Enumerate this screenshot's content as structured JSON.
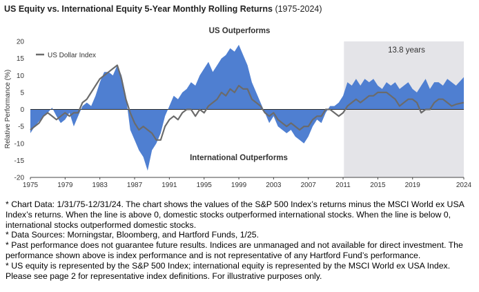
{
  "chart_data": {
    "type": "area",
    "title": "US Equity vs. International Equity 5-Year Monthly Rolling Returns",
    "title_period": "(1975-2024)",
    "ylabel": "Relative Performance (%)",
    "xlabel": "",
    "ylim": [
      -20,
      20
    ],
    "xlim": [
      1975,
      2024.9
    ],
    "y_ticks": [
      "20",
      "15",
      "10",
      "5",
      "0",
      "-5",
      "-10",
      "-15",
      "-20"
    ],
    "x_ticks": [
      "1975",
      "1979",
      "1983",
      "1987",
      "1991",
      "1995",
      "1999",
      "2003",
      "2007",
      "2011",
      "2015",
      "2019",
      "2024"
    ],
    "grid": false,
    "legend": "top-left",
    "annotations": {
      "top": "US Outperforms",
      "bottom": "International Outperforms",
      "highlight": "13.8 years",
      "highlight_range": [
        2011.1,
        2024.9
      ]
    },
    "colors": {
      "area": "#4f7fd1",
      "line": "#6b6b6b",
      "highlight": "#e4e4e8",
      "zero_line": "#2b2b2b"
    },
    "series": [
      {
        "name": "",
        "kind": "area",
        "x": [
          1975,
          1975.5,
          1976,
          1976.5,
          1977,
          1977.5,
          1978,
          1978.5,
          1979,
          1979.5,
          1980,
          1980.5,
          1981,
          1981.5,
          1982,
          1982.5,
          1983,
          1983.5,
          1984,
          1984.5,
          1985,
          1985.5,
          1986,
          1986.5,
          1987,
          1987.5,
          1988,
          1988.5,
          1989,
          1989.5,
          1990,
          1990.5,
          1991,
          1991.5,
          1992,
          1992.5,
          1993,
          1993.5,
          1994,
          1994.5,
          1995,
          1995.5,
          1996,
          1996.5,
          1997,
          1997.5,
          1998,
          1998.5,
          1999,
          1999.5,
          2000,
          2000.5,
          2001,
          2001.5,
          2002,
          2002.5,
          2003,
          2003.5,
          2004,
          2004.5,
          2005,
          2005.5,
          2006,
          2006.5,
          2007,
          2007.5,
          2008,
          2008.5,
          2009,
          2009.5,
          2010,
          2010.5,
          2011,
          2011.5,
          2012,
          2012.5,
          2013,
          2013.5,
          2014,
          2014.5,
          2015,
          2015.5,
          2016,
          2016.5,
          2017,
          2017.5,
          2018,
          2018.5,
          2019,
          2019.5,
          2020,
          2020.5,
          2021,
          2021.5,
          2022,
          2022.5,
          2023,
          2023.5,
          2024,
          2024.9
        ],
        "values": [
          -7,
          -5,
          -3.5,
          -2,
          -1,
          0.5,
          -2,
          -4,
          -3,
          -1,
          -5,
          -2,
          1,
          2,
          1,
          4,
          8,
          11,
          11,
          10,
          13,
          10,
          4,
          -6,
          -9,
          -12,
          -14,
          -18,
          -12,
          -10,
          -7,
          -2,
          1,
          4,
          3,
          5,
          6,
          8,
          7,
          10,
          12,
          14,
          11,
          13,
          15,
          16,
          18,
          17,
          19,
          16,
          13,
          8,
          5,
          2,
          -1,
          -4,
          -2,
          -5,
          -6,
          -7,
          -6,
          -8,
          -9,
          -10,
          -8,
          -5,
          -3,
          -4,
          -1,
          1,
          1,
          2,
          4,
          8,
          7,
          9,
          7,
          9,
          8,
          9,
          7,
          6,
          8,
          7,
          8,
          6,
          7,
          8,
          6,
          5,
          7,
          9,
          6,
          8,
          8,
          7,
          9,
          8,
          7,
          9.5
        ]
      },
      {
        "name": "US Dollar Index",
        "kind": "line",
        "x": [
          1975,
          1975.5,
          1976,
          1976.5,
          1977,
          1977.5,
          1978,
          1978.5,
          1979,
          1979.5,
          1980,
          1980.5,
          1981,
          1981.5,
          1982,
          1982.5,
          1983,
          1983.5,
          1984,
          1984.5,
          1985,
          1985.5,
          1986,
          1986.5,
          1987,
          1987.5,
          1988,
          1988.5,
          1989,
          1989.5,
          1990,
          1990.5,
          1991,
          1991.5,
          1992,
          1992.5,
          1993,
          1993.5,
          1994,
          1994.5,
          1995,
          1995.5,
          1996,
          1996.5,
          1997,
          1997.5,
          1998,
          1998.5,
          1999,
          1999.5,
          2000,
          2000.5,
          2001,
          2001.5,
          2002,
          2002.5,
          2003,
          2003.5,
          2004,
          2004.5,
          2005,
          2005.5,
          2006,
          2006.5,
          2007,
          2007.5,
          2008,
          2008.5,
          2009,
          2009.5,
          2010,
          2010.5,
          2011,
          2011.5,
          2012,
          2012.5,
          2013,
          2013.5,
          2014,
          2014.5,
          2015,
          2015.5,
          2016,
          2016.5,
          2017,
          2017.5,
          2018,
          2018.5,
          2019,
          2019.5,
          2020,
          2020.5,
          2021,
          2021.5,
          2022,
          2022.5,
          2023,
          2023.5,
          2024,
          2024.9
        ],
        "values": [
          -6,
          -5,
          -4,
          -2,
          -1,
          -2,
          -3,
          -2,
          -1,
          -2,
          -1,
          -1,
          2,
          3,
          5,
          7,
          9,
          10,
          11,
          12,
          13,
          9,
          3,
          -1,
          -4,
          -6,
          -5,
          -6,
          -7,
          -9,
          -9,
          -5,
          -3,
          -2,
          -3,
          -1,
          0,
          0,
          -2,
          0,
          -1,
          1,
          2,
          3,
          5,
          4,
          6,
          5,
          7,
          6,
          6,
          3,
          2,
          1,
          -1,
          -2,
          -1,
          -3,
          -4,
          -5,
          -4,
          -5,
          -6,
          -5,
          -5,
          -3,
          -2,
          -2,
          0,
          0,
          -1,
          -2,
          -1,
          1,
          2,
          3,
          2,
          3,
          4,
          4,
          5,
          5,
          5,
          4,
          3,
          1,
          2,
          3,
          3,
          2,
          -1,
          0,
          0,
          2,
          3,
          3,
          2,
          1,
          1.5,
          2
        ]
      }
    ]
  },
  "notes": [
    "* Chart Data: 1/31/75-12/31/24. The chart shows the values of the S&P 500 Index’s returns minus the MSCI World ex USA Index’s returns. When the line is above 0, domestic stocks outperformed international stocks. When the line is below 0, international stocks outperformed domestic stocks.",
    "* Data Sources: Morningstar, Bloomberg, and Hartford Funds, 1/25.",
    "* Past performance does not guarantee future results. Indices are unmanaged and not available for direct investment. The performance shown above is index performance and is not representative of any Hartford Fund’s performance.",
    "* US equity is represented by the S&P 500 Index; international equity is represented by the MSCI World ex USA Index. Please see page 2 for representative index definitions. For illustrative purposes only."
  ]
}
